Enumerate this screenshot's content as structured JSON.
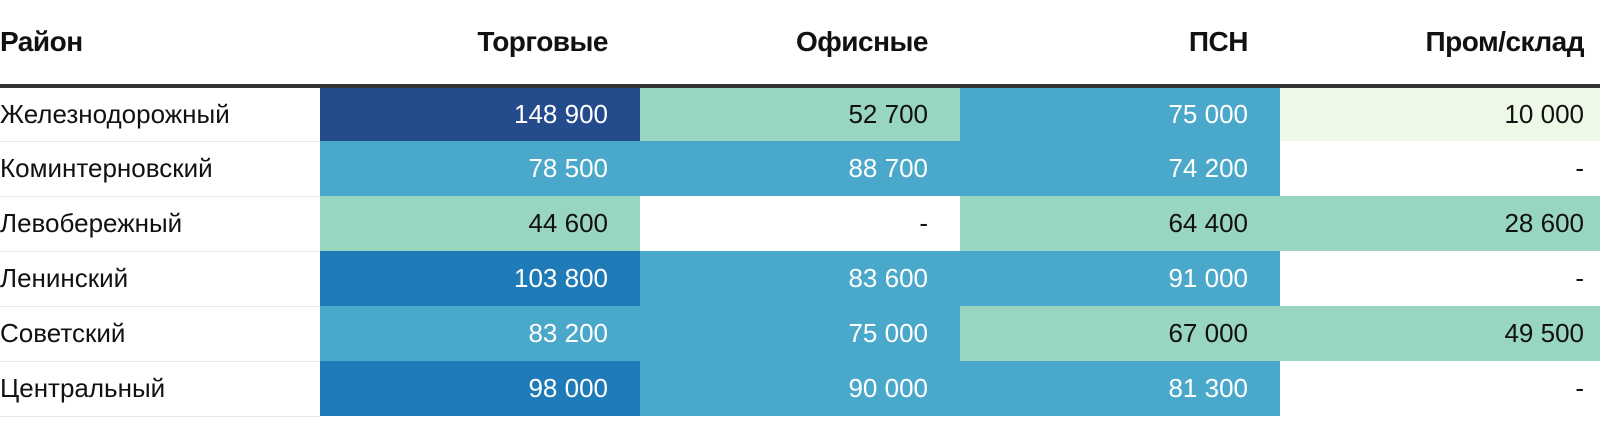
{
  "chart_data": {
    "type": "table",
    "columns": [
      "Район",
      "Торговые",
      "Офисные",
      "ПСН",
      "Пром/склад"
    ],
    "rows": [
      {
        "district": "Железнодорожный",
        "values": [
          "148 900",
          "52 700",
          "75 000",
          "10 000"
        ],
        "numeric": [
          148900,
          52700,
          75000,
          10000
        ]
      },
      {
        "district": "Коминтерновский",
        "values": [
          "78 500",
          "88 700",
          "74 200",
          "-"
        ],
        "numeric": [
          78500,
          88700,
          74200,
          null
        ]
      },
      {
        "district": "Левобережный",
        "values": [
          "44 600",
          "-",
          "64 400",
          "28 600"
        ],
        "numeric": [
          44600,
          null,
          64400,
          28600
        ]
      },
      {
        "district": "Ленинский",
        "values": [
          "103 800",
          "83 600",
          "91 000",
          "-"
        ],
        "numeric": [
          103800,
          83600,
          91000,
          null
        ]
      },
      {
        "district": "Советский",
        "values": [
          "83 200",
          "75 000",
          "67 000",
          "49 500"
        ],
        "numeric": [
          83200,
          75000,
          67000,
          49500
        ]
      },
      {
        "district": "Центральный",
        "values": [
          "98 000",
          "90 000",
          "81 300",
          "-"
        ],
        "numeric": [
          98000,
          90000,
          81300,
          null
        ]
      }
    ],
    "color_scale": {
      "empty": "#ffffff",
      "level_1": "#eef8e6",
      "level_2": "#98d6c0",
      "level_3": "#4aa8cb",
      "level_4": "#1f7ab8",
      "level_5": "#244b8c"
    },
    "text_colors": {
      "dark": "#111111",
      "light": "#ffffff"
    }
  }
}
